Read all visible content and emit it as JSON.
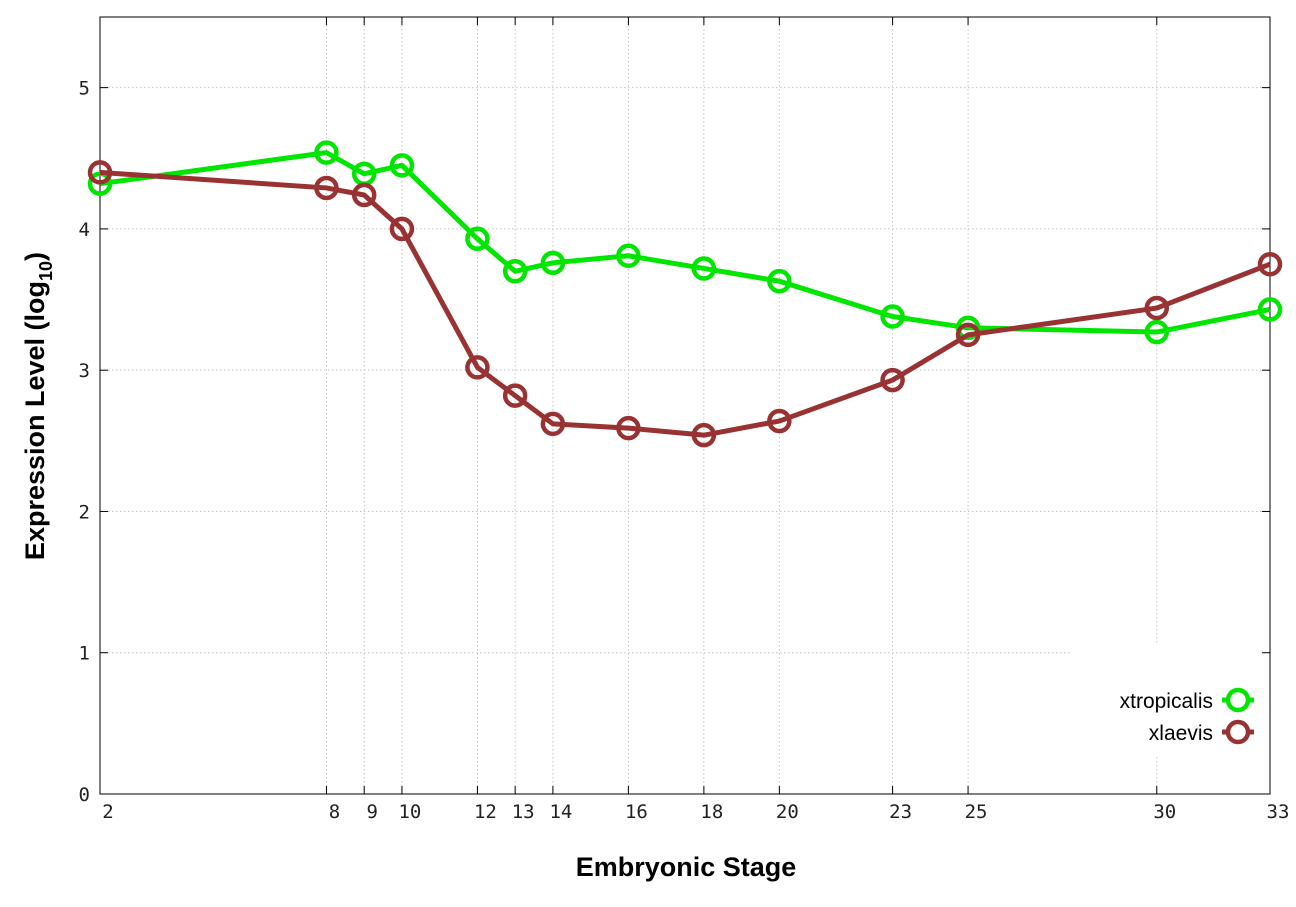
{
  "chart_data": {
    "type": "line",
    "title": "",
    "xlabel": "Embryonic Stage",
    "ylabel_main": "Expression Level (log",
    "ylabel_sub": "10",
    "ylabel_close": ")",
    "x_ticks": [
      "2",
      "8",
      "9",
      "10",
      "12",
      "13",
      "14",
      "16",
      "18",
      "20",
      "23",
      "25",
      "30",
      "33"
    ],
    "y_ticks": [
      "0",
      "1",
      "2",
      "3",
      "4",
      "5"
    ],
    "ylim": [
      0,
      5.5
    ],
    "grid": true,
    "legend_position": "bottom-right",
    "series": [
      {
        "name": "xtropicalis",
        "color": "#00e600",
        "values": [
          4.32,
          4.54,
          4.39,
          4.45,
          3.93,
          3.7,
          3.76,
          3.81,
          3.72,
          3.63,
          3.38,
          3.3,
          3.27,
          3.43
        ]
      },
      {
        "name": "xlaevis",
        "color": "#993333",
        "values": [
          4.4,
          4.29,
          4.24,
          4.0,
          3.02,
          2.82,
          2.62,
          2.59,
          2.54,
          2.64,
          2.93,
          3.25,
          3.44,
          3.75
        ]
      }
    ]
  }
}
